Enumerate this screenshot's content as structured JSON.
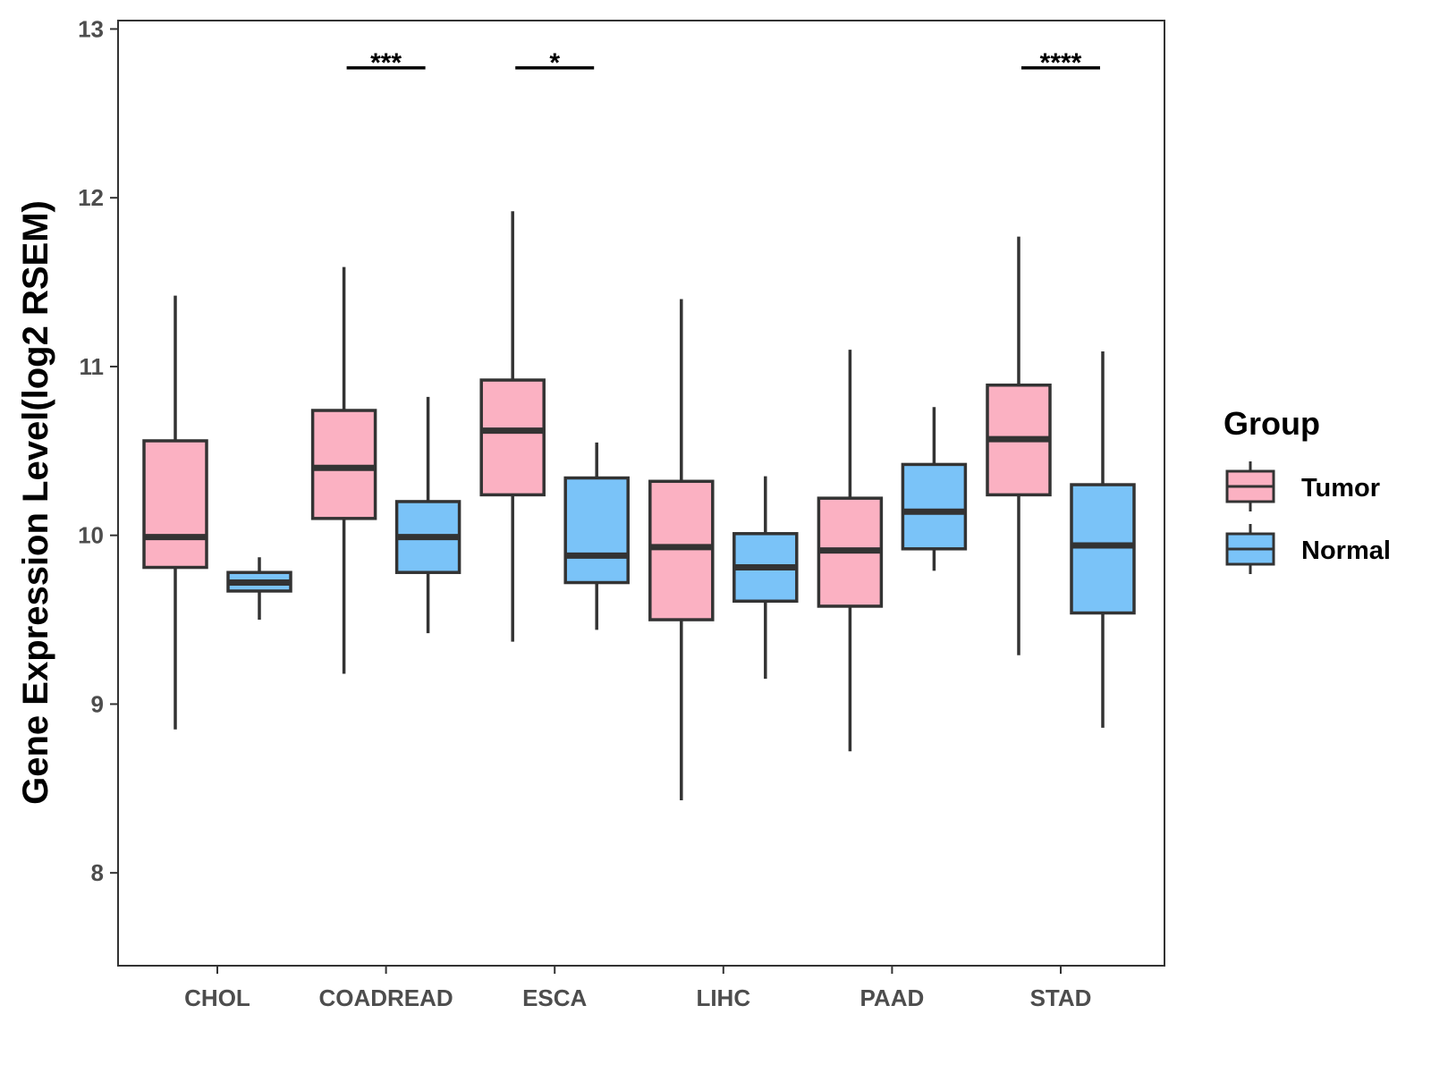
{
  "chart_data": {
    "type": "boxplot",
    "title": "",
    "xlabel": "",
    "ylabel": "Gene Expression Level(log2 RSEM)",
    "ylim": [
      7.45,
      13.05
    ],
    "yticks": [
      8,
      9,
      10,
      11,
      12,
      13
    ],
    "grid": false,
    "legend": {
      "title": "Group",
      "position": "right"
    },
    "categories": [
      "CHOL",
      "COADREAD",
      "ESCA",
      "LIHC",
      "PAAD",
      "STAD"
    ],
    "series": [
      {
        "name": "Tumor",
        "color": "#FBB1C2",
        "boxes": [
          {
            "whisker_low": 8.85,
            "q1": 9.81,
            "median": 9.99,
            "q3": 10.56,
            "whisker_high": 11.42
          },
          {
            "whisker_low": 9.18,
            "q1": 10.1,
            "median": 10.4,
            "q3": 10.74,
            "whisker_high": 11.59
          },
          {
            "whisker_low": 9.37,
            "q1": 10.24,
            "median": 10.62,
            "q3": 10.92,
            "whisker_high": 11.92
          },
          {
            "whisker_low": 8.43,
            "q1": 9.5,
            "median": 9.93,
            "q3": 10.32,
            "whisker_high": 11.4
          },
          {
            "whisker_low": 8.72,
            "q1": 9.58,
            "median": 9.91,
            "q3": 10.22,
            "whisker_high": 11.1
          },
          {
            "whisker_low": 9.29,
            "q1": 10.24,
            "median": 10.57,
            "q3": 10.89,
            "whisker_high": 11.77
          }
        ]
      },
      {
        "name": "Normal",
        "color": "#7AC3F8",
        "boxes": [
          {
            "whisker_low": 9.5,
            "q1": 9.67,
            "median": 9.72,
            "q3": 9.78,
            "whisker_high": 9.87
          },
          {
            "whisker_low": 9.42,
            "q1": 9.78,
            "median": 9.99,
            "q3": 10.2,
            "whisker_high": 10.82
          },
          {
            "whisker_low": 9.44,
            "q1": 9.72,
            "median": 9.88,
            "q3": 10.34,
            "whisker_high": 10.55
          },
          {
            "whisker_low": 9.15,
            "q1": 9.61,
            "median": 9.81,
            "q3": 10.01,
            "whisker_high": 10.35
          },
          {
            "whisker_low": 9.79,
            "q1": 9.92,
            "median": 10.14,
            "q3": 10.42,
            "whisker_high": 10.76
          },
          {
            "whisker_low": 8.86,
            "q1": 9.54,
            "median": 9.94,
            "q3": 10.3,
            "whisker_high": 11.09
          }
        ]
      }
    ],
    "annotations": [
      {
        "category": "COADREAD",
        "label": "***",
        "y": 12.77
      },
      {
        "category": "ESCA",
        "label": "*",
        "y": 12.77
      },
      {
        "category": "STAD",
        "label": "****",
        "y": 12.77
      }
    ]
  }
}
